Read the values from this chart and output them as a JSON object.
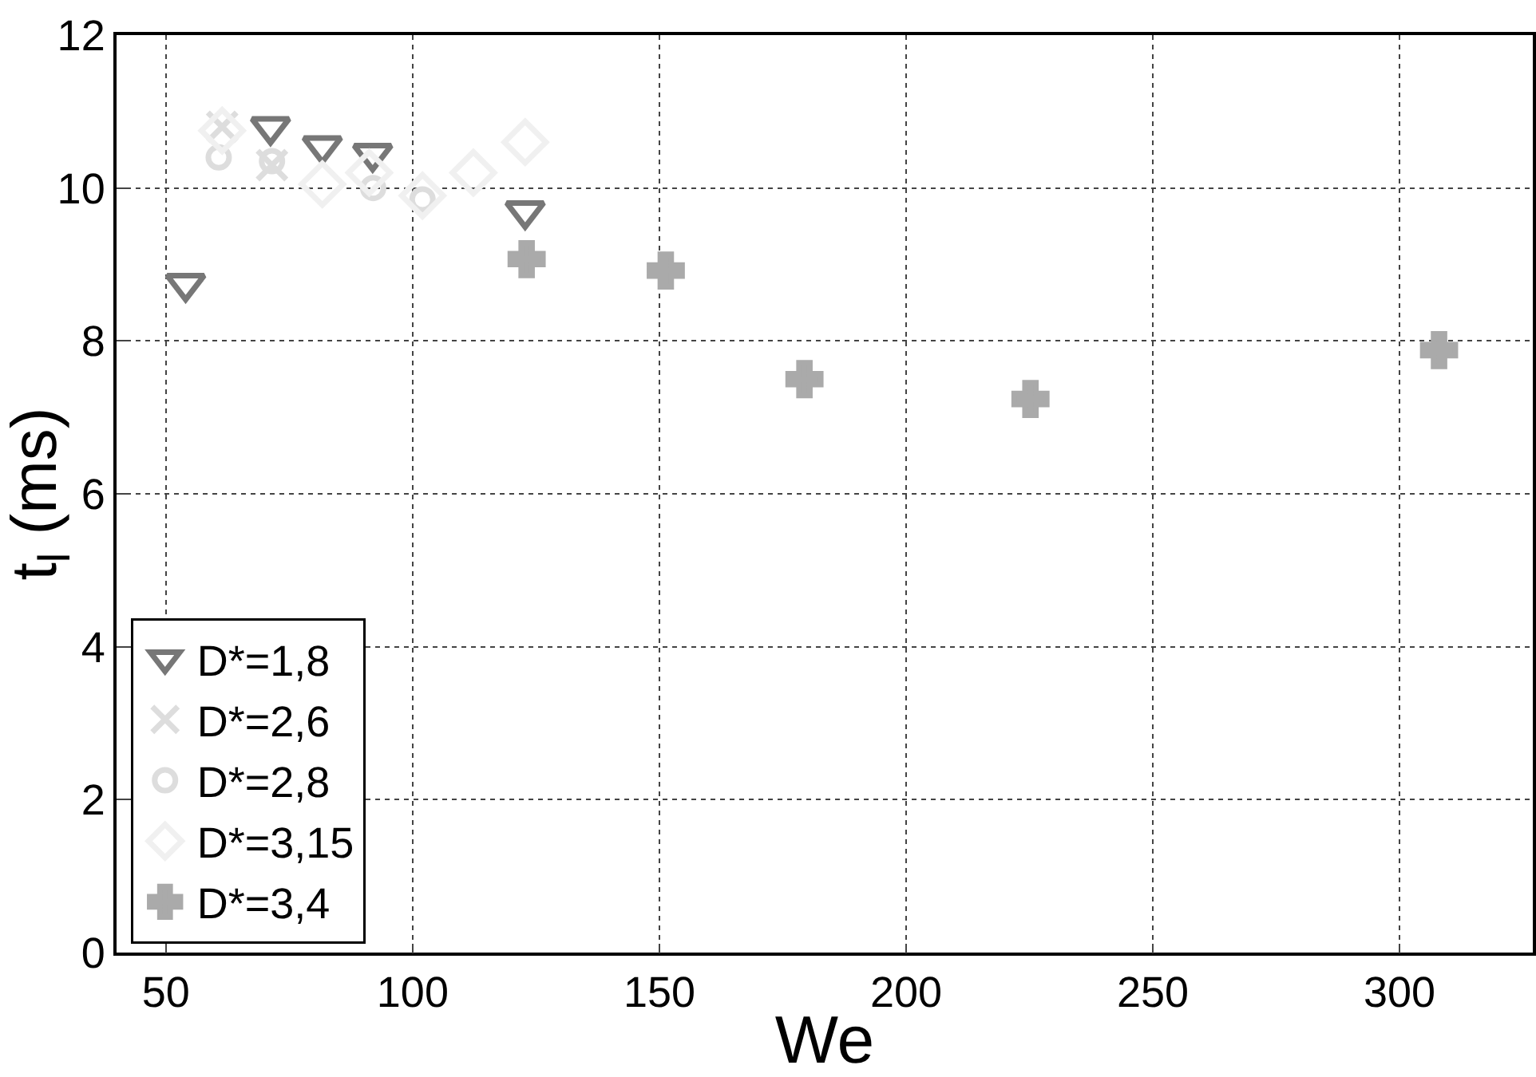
{
  "chart_data": {
    "type": "scatter",
    "xlabel": "We",
    "ylabel": "t$_{l}$ (ms)",
    "xlim": [
      40,
      327
    ],
    "xticks": [
      50,
      100,
      150,
      200,
      250,
      300
    ],
    "ylim": [
      0,
      12
    ],
    "yticks": [
      0,
      2,
      4,
      6,
      8,
      10,
      12
    ],
    "grid": true,
    "legend": "bottom left",
    "series": [
      {
        "name": "D*=1,8",
        "color": "#777777",
        "marker": "triangle",
        "x": [
          54,
          71.2,
          81.7,
          91.9,
          122.8
        ],
        "values": [
          8.75,
          10.8,
          10.55,
          10.45,
          9.7
        ]
      },
      {
        "name": "D*=2,6",
        "color": "#dddddd",
        "marker": "cross",
        "x": [
          61.4,
          71.5
        ],
        "values": [
          10.8,
          10.3
        ]
      },
      {
        "name": "D*=2,8",
        "color": "#dddddd",
        "marker": "circle",
        "x": [
          60.7,
          71.5,
          92,
          102
        ],
        "values": [
          10.4,
          10.35,
          10.0,
          9.85
        ]
      },
      {
        "name": "D*=3,15",
        "color": "#f0f0f0",
        "marker": "diamond",
        "x": [
          61.4,
          81.7,
          91.2,
          102,
          112.3,
          122.8
        ],
        "values": [
          10.75,
          10.05,
          10.2,
          9.9,
          10.2,
          10.6
        ]
      },
      {
        "name": "D*=3,4",
        "color": "#aaaaaa",
        "x": [
          123.1,
          151.3,
          179.4,
          225.2,
          308
        ],
        "values": [
          9.07,
          8.92,
          7.5,
          7.24,
          7.88
        ]
      }
    ]
  }
}
